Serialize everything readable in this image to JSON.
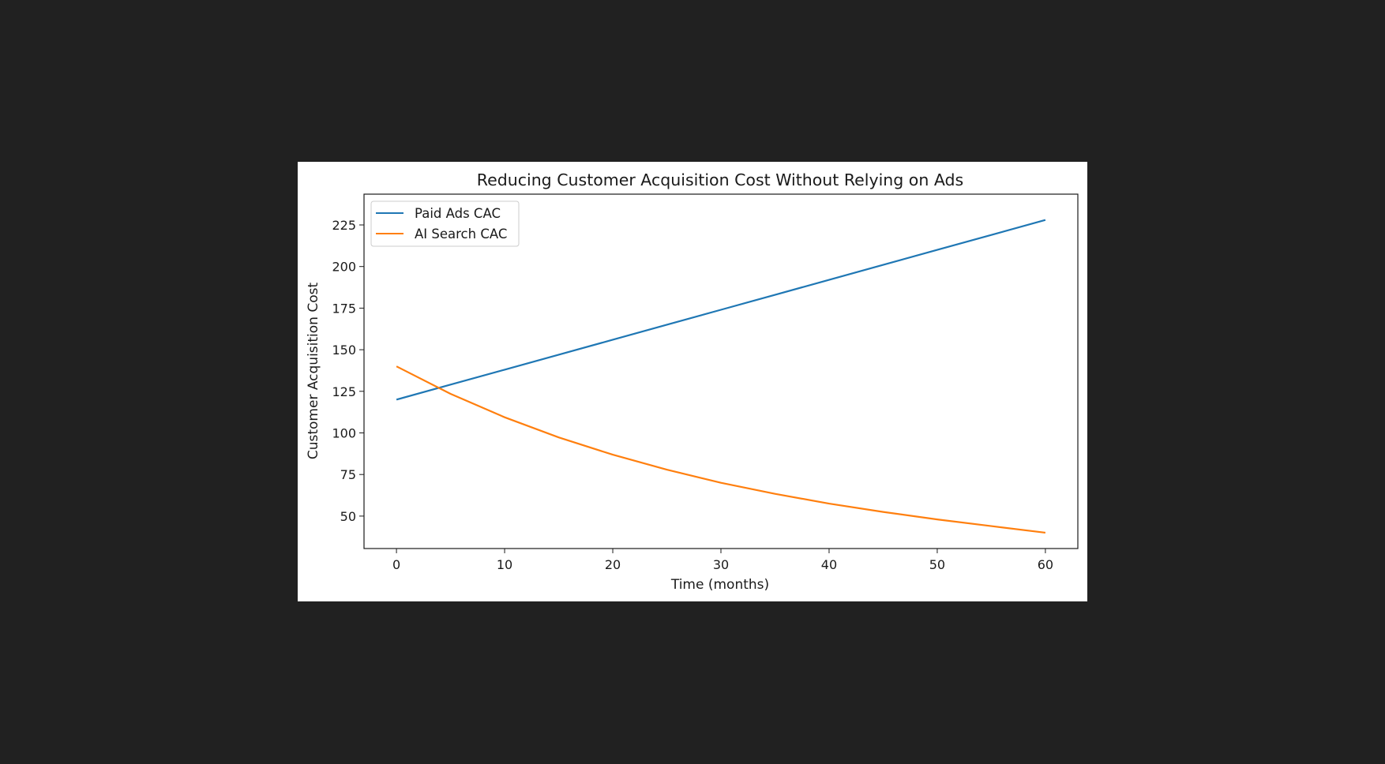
{
  "chart_data": {
    "type": "line",
    "title": "Reducing Customer Acquisition Cost Without Relying on Ads",
    "xlabel": "Time (months)",
    "ylabel": "Customer Acquisition Cost",
    "xlim": [
      -3,
      63
    ],
    "ylim": [
      30.5,
      243.5
    ],
    "xticks": [
      0,
      10,
      20,
      30,
      40,
      50,
      60
    ],
    "yticks": [
      50,
      75,
      100,
      125,
      150,
      175,
      200,
      225
    ],
    "grid": false,
    "legend_position": "top-left",
    "x": [
      0,
      5,
      10,
      15,
      20,
      25,
      30,
      35,
      40,
      45,
      50,
      55,
      60
    ],
    "series": [
      {
        "name": "Paid Ads CAC",
        "color": "#1f77b4",
        "values": [
          120,
          129,
          138,
          147,
          156,
          165,
          174,
          183,
          192,
          201,
          210,
          219,
          228
        ]
      },
      {
        "name": "AI Search CAC",
        "color": "#ff7f0e",
        "values": [
          140,
          123.5,
          109.4,
          97.3,
          86.9,
          77.9,
          70.0,
          63.4,
          57.5,
          52.5,
          48.0,
          44.0,
          40.0
        ]
      }
    ]
  }
}
